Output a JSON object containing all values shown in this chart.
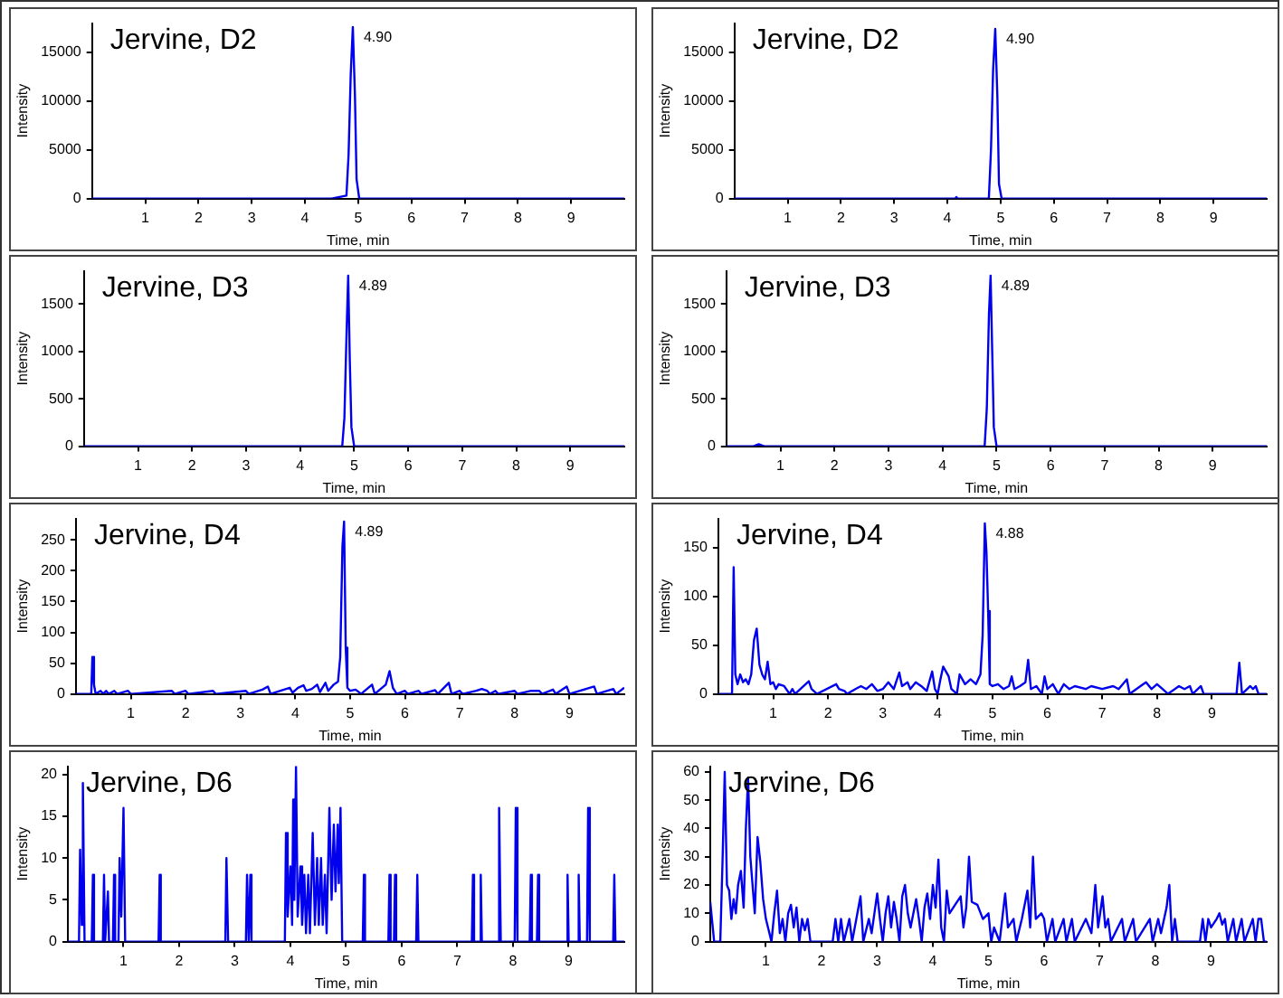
{
  "chart_data": [
    {
      "type": "line",
      "title": "Jervine, D2",
      "xlabel": "Time, min",
      "ylabel": "Intensity",
      "color": "#0000ee",
      "xlim": [
        0,
        10
      ],
      "xticks": [
        1,
        2,
        3,
        4,
        5,
        6,
        7,
        8,
        9
      ],
      "ylim": [
        0,
        18000
      ],
      "yticks": [
        0,
        5000,
        10000,
        15000
      ],
      "annotations": [
        {
          "text": "4.90",
          "x": 4.9,
          "y": 17600
        }
      ],
      "x": [
        0,
        4.5,
        4.78,
        4.82,
        4.86,
        4.9,
        4.94,
        4.97,
        5.02,
        10
      ],
      "values": [
        0,
        0,
        300,
        4500,
        12700,
        17600,
        10500,
        2000,
        0,
        0
      ]
    },
    {
      "type": "line",
      "title": "Jervine, D2",
      "xlabel": "Time, min",
      "ylabel": "Intensity",
      "color": "#0000ee",
      "xlim": [
        0,
        10
      ],
      "xticks": [
        1,
        2,
        3,
        4,
        5,
        6,
        7,
        8,
        9
      ],
      "ylim": [
        0,
        18000
      ],
      "yticks": [
        0,
        5000,
        10000,
        15000
      ],
      "annotations": [
        {
          "text": "4.90",
          "x": 4.9,
          "y": 17400
        }
      ],
      "x": [
        0,
        4.15,
        4.17,
        4.19,
        4.78,
        4.82,
        4.86,
        4.9,
        4.94,
        4.97,
        5.02,
        10
      ],
      "values": [
        0,
        0,
        150,
        0,
        0,
        5000,
        13200,
        17400,
        10500,
        1500,
        0,
        0
      ]
    },
    {
      "type": "line",
      "title": "Jervine, D3",
      "xlabel": "Time, min",
      "ylabel": "Intensity",
      "color": "#0000ee",
      "xlim": [
        0,
        10
      ],
      "xticks": [
        1,
        2,
        3,
        4,
        5,
        6,
        7,
        8,
        9
      ],
      "ylim": [
        0,
        1850
      ],
      "yticks": [
        0,
        500,
        1000,
        1500
      ],
      "annotations": [
        {
          "text": "4.89",
          "x": 4.89,
          "y": 1800
        }
      ],
      "x": [
        0,
        4.78,
        4.82,
        4.86,
        4.89,
        4.92,
        4.95,
        5.0,
        10
      ],
      "values": [
        0,
        0,
        300,
        1200,
        1800,
        900,
        200,
        0,
        0
      ]
    },
    {
      "type": "line",
      "title": "Jervine, D3",
      "xlabel": "Time, min",
      "ylabel": "Intensity",
      "color": "#0000ee",
      "xlim": [
        0,
        10
      ],
      "xticks": [
        1,
        2,
        3,
        4,
        5,
        6,
        7,
        8,
        9
      ],
      "ylim": [
        0,
        1850
      ],
      "yticks": [
        0,
        500,
        1000,
        1500
      ],
      "annotations": [
        {
          "text": "4.89",
          "x": 4.89,
          "y": 1800
        }
      ],
      "x": [
        0,
        0.5,
        0.6,
        0.7,
        4.78,
        4.82,
        4.86,
        4.89,
        4.92,
        4.95,
        5.0,
        10
      ],
      "values": [
        0,
        0,
        20,
        0,
        0,
        400,
        1400,
        1800,
        1000,
        200,
        0,
        0
      ]
    },
    {
      "type": "line",
      "title": "Jervine, D4",
      "xlabel": "Time, min",
      "ylabel": "Intensity",
      "color": "#0000ee",
      "xlim": [
        0,
        10
      ],
      "xticks": [
        1,
        2,
        3,
        4,
        5,
        6,
        7,
        8,
        9
      ],
      "ylim": [
        0,
        285
      ],
      "yticks": [
        0,
        50,
        100,
        150,
        200,
        250
      ],
      "annotations": [
        {
          "text": "4.89",
          "x": 4.89,
          "y": 280
        }
      ],
      "x": [
        0,
        0.28,
        0.3,
        0.33,
        0.36,
        0.45,
        0.5,
        0.55,
        0.6,
        0.7,
        0.75,
        0.95,
        1.0,
        1.75,
        1.8,
        2.0,
        2.05,
        2.5,
        2.55,
        3.1,
        3.15,
        3.4,
        3.5,
        3.55,
        3.9,
        3.95,
        4.05,
        4.15,
        4.2,
        4.3,
        4.4,
        4.45,
        4.55,
        4.6,
        4.7,
        4.78,
        4.82,
        4.86,
        4.89,
        4.92,
        4.95,
        5.0,
        5.1,
        5.2,
        5.4,
        5.45,
        5.65,
        5.72,
        5.78,
        5.85,
        6.0,
        6.05,
        6.25,
        6.3,
        6.55,
        6.6,
        6.8,
        6.85,
        7.0,
        7.05,
        7.3,
        7.4,
        7.5,
        7.55,
        7.65,
        7.7,
        8.0,
        8.05,
        8.3,
        8.45,
        8.5,
        8.7,
        8.75,
        8.95,
        9.0,
        9.45,
        9.5,
        9.8,
        9.85,
        10
      ],
      "values": [
        0,
        0,
        60,
        15,
        0,
        5,
        0,
        5,
        0,
        5,
        0,
        5,
        0,
        5,
        0,
        5,
        0,
        5,
        0,
        5,
        0,
        7,
        12,
        0,
        10,
        2,
        10,
        14,
        5,
        8,
        15,
        3,
        18,
        5,
        15,
        20,
        60,
        240,
        280,
        75,
        10,
        5,
        7,
        0,
        15,
        0,
        15,
        37,
        10,
        0,
        5,
        0,
        5,
        0,
        6,
        0,
        18,
        0,
        5,
        0,
        5,
        8,
        5,
        0,
        5,
        0,
        5,
        0,
        5,
        5,
        0,
        7,
        0,
        12,
        0,
        12,
        0,
        8,
        0,
        10
      ]
    },
    {
      "type": "line",
      "title": "Jervine, D4",
      "xlabel": "Time, min",
      "ylabel": "Intensity",
      "color": "#0000ee",
      "xlim": [
        0,
        10
      ],
      "xticks": [
        1,
        2,
        3,
        4,
        5,
        6,
        7,
        8,
        9
      ],
      "ylim": [
        0,
        180
      ],
      "yticks": [
        0,
        50,
        100,
        150
      ],
      "annotations": [
        {
          "text": "4.88",
          "x": 4.86,
          "y": 175
        }
      ],
      "x": [
        0,
        0.25,
        0.28,
        0.31,
        0.35,
        0.4,
        0.45,
        0.5,
        0.55,
        0.6,
        0.65,
        0.7,
        0.75,
        0.8,
        0.85,
        0.9,
        0.95,
        1.0,
        1.05,
        1.1,
        1.2,
        1.3,
        1.35,
        1.4,
        1.65,
        1.7,
        1.8,
        2.15,
        2.2,
        2.3,
        2.35,
        2.5,
        2.6,
        2.7,
        2.8,
        2.9,
        3.0,
        3.1,
        3.2,
        3.3,
        3.35,
        3.45,
        3.5,
        3.6,
        3.7,
        3.8,
        3.9,
        3.95,
        4.0,
        4.05,
        4.1,
        4.2,
        4.25,
        4.35,
        4.4,
        4.5,
        4.6,
        4.7,
        4.78,
        4.82,
        4.86,
        4.89,
        4.92,
        4.95,
        5.0,
        5.1,
        5.2,
        5.3,
        5.35,
        5.4,
        5.5,
        5.6,
        5.65,
        5.7,
        5.8,
        5.9,
        5.95,
        6.0,
        6.1,
        6.2,
        6.3,
        6.4,
        6.5,
        6.7,
        6.8,
        7.0,
        7.2,
        7.3,
        7.45,
        7.5,
        7.75,
        7.8,
        7.9,
        8.0,
        8.1,
        8.2,
        8.4,
        8.5,
        8.6,
        8.65,
        8.8,
        8.85,
        9.45,
        9.5,
        9.55,
        9.7,
        9.75,
        9.8,
        9.85,
        10
      ],
      "values": [
        0,
        0,
        130,
        20,
        10,
        20,
        12,
        15,
        10,
        20,
        55,
        67,
        30,
        20,
        15,
        33,
        10,
        12,
        5,
        10,
        8,
        0,
        5,
        0,
        13,
        5,
        0,
        10,
        5,
        3,
        0,
        5,
        8,
        5,
        10,
        3,
        5,
        12,
        5,
        22,
        8,
        12,
        5,
        12,
        8,
        3,
        23,
        5,
        0,
        15,
        28,
        18,
        5,
        0,
        20,
        10,
        15,
        10,
        20,
        60,
        175,
        145,
        85,
        10,
        8,
        10,
        5,
        8,
        18,
        5,
        8,
        12,
        35,
        5,
        8,
        0,
        18,
        5,
        10,
        0,
        10,
        5,
        8,
        5,
        8,
        5,
        8,
        5,
        15,
        0,
        10,
        12,
        5,
        10,
        5,
        0,
        8,
        5,
        8,
        0,
        8,
        0,
        0,
        32,
        0,
        8,
        5,
        8,
        0,
        0
      ]
    },
    {
      "type": "line",
      "title": "Jervine, D6",
      "xlabel": "Time, min",
      "ylabel": "Intensity",
      "color": "#0000ee",
      "xlim": [
        0,
        10
      ],
      "xticks": [
        1,
        2,
        3,
        4,
        5,
        6,
        7,
        8,
        9
      ],
      "ylim": [
        0,
        21
      ],
      "yticks": [
        0,
        5,
        10,
        15,
        20
      ],
      "x": [
        0,
        0.2,
        0.22,
        0.25,
        0.27,
        0.3,
        0.43,
        0.45,
        0.47,
        0.63,
        0.65,
        0.67,
        0.72,
        0.74,
        0.81,
        0.83,
        0.85,
        0.91,
        0.93,
        0.96,
        1.0,
        1.03,
        1.63,
        1.65,
        1.67,
        2.83,
        2.85,
        2.88,
        3.2,
        3.22,
        3.25,
        3.28,
        3.3,
        3.9,
        3.92,
        3.95,
        4.0,
        4.03,
        4.05,
        4.07,
        4.1,
        4.13,
        4.18,
        4.21,
        4.25,
        4.28,
        4.32,
        4.35,
        4.4,
        4.44,
        4.48,
        4.51,
        4.55,
        4.58,
        4.62,
        4.65,
        4.7,
        4.74,
        4.78,
        4.81,
        4.85,
        4.87,
        4.9,
        4.93,
        5.3,
        5.32,
        5.34,
        5.76,
        5.78,
        5.8,
        5.86,
        5.88,
        5.9,
        6.26,
        6.28,
        6.3,
        7.26,
        7.28,
        7.3,
        7.4,
        7.42,
        7.44,
        7.73,
        7.75,
        7.78,
        8.03,
        8.05,
        8.08,
        8.3,
        8.32,
        8.34,
        8.43,
        8.45,
        8.47,
        8.96,
        8.98,
        9.0,
        9.16,
        9.18,
        9.2,
        9.33,
        9.35,
        9.38,
        9.8,
        9.82,
        9.84,
        10
      ],
      "values": [
        0,
        0,
        11,
        2,
        19,
        0,
        0,
        8,
        0,
        0,
        8,
        0,
        6,
        0,
        0,
        8,
        0,
        0,
        10,
        3,
        16,
        0,
        0,
        8,
        0,
        0,
        10,
        0,
        0,
        8,
        0,
        8,
        0,
        0,
        13,
        3,
        9,
        2,
        17,
        5,
        21,
        3,
        9,
        2,
        8,
        1,
        8,
        1,
        13,
        2,
        10,
        2,
        10,
        2,
        8,
        1,
        16,
        5,
        14,
        6,
        14,
        7,
        16,
        0,
        0,
        8,
        0,
        0,
        8,
        0,
        0,
        8,
        0,
        0,
        8,
        0,
        0,
        8,
        0,
        0,
        8,
        0,
        0,
        16,
        0,
        0,
        16,
        0,
        0,
        8,
        0,
        0,
        8,
        0,
        0,
        8,
        0,
        0,
        8,
        0,
        0,
        16,
        0,
        0,
        8,
        0,
        0
      ]
    },
    {
      "type": "line",
      "title": "Jervine, D6",
      "xlabel": "Time, min",
      "ylabel": "Intensity",
      "color": "#0000ee",
      "xlim": [
        0,
        10
      ],
      "xticks": [
        1,
        2,
        3,
        4,
        5,
        6,
        7,
        8,
        9
      ],
      "ylim": [
        0,
        62
      ],
      "yticks": [
        0,
        10,
        20,
        30,
        40,
        50,
        60
      ],
      "x": [
        0,
        0.04,
        0.07,
        0.18,
        0.22,
        0.26,
        0.3,
        0.34,
        0.38,
        0.42,
        0.46,
        0.5,
        0.55,
        0.6,
        0.64,
        0.68,
        0.72,
        0.76,
        0.8,
        0.85,
        0.9,
        0.95,
        1.0,
        1.05,
        1.1,
        1.15,
        1.2,
        1.25,
        1.3,
        1.35,
        1.4,
        1.45,
        1.5,
        1.55,
        1.6,
        1.65,
        1.7,
        1.75,
        1.8,
        2.2,
        2.25,
        2.3,
        2.35,
        2.4,
        2.5,
        2.55,
        2.7,
        2.75,
        2.85,
        2.9,
        2.95,
        3.0,
        3.05,
        3.1,
        3.15,
        3.2,
        3.25,
        3.3,
        3.35,
        3.4,
        3.45,
        3.5,
        3.55,
        3.6,
        3.7,
        3.75,
        3.8,
        3.85,
        3.9,
        3.95,
        4.0,
        4.05,
        4.1,
        4.15,
        4.2,
        4.25,
        4.3,
        4.4,
        4.5,
        4.55,
        4.6,
        4.65,
        4.7,
        4.8,
        4.9,
        5.0,
        5.05,
        5.1,
        5.2,
        5.3,
        5.35,
        5.45,
        5.5,
        5.6,
        5.7,
        5.75,
        5.8,
        5.85,
        5.95,
        6.0,
        6.05,
        6.15,
        6.2,
        6.35,
        6.4,
        6.5,
        6.55,
        6.75,
        6.85,
        6.92,
        6.97,
        7.05,
        7.1,
        7.15,
        7.2,
        7.4,
        7.45,
        7.6,
        7.65,
        7.9,
        7.95,
        8.05,
        8.1,
        8.2,
        8.25,
        8.3,
        8.35,
        8.4,
        8.8,
        8.85,
        8.9,
        8.95,
        9.0,
        9.1,
        9.15,
        9.2,
        9.25,
        9.3,
        9.4,
        9.45,
        9.55,
        9.6,
        9.75,
        9.8,
        9.85,
        9.9,
        9.95,
        10
      ],
      "values": [
        14,
        6,
        0,
        0,
        28,
        60,
        20,
        18,
        8,
        15,
        10,
        20,
        25,
        12,
        40,
        58,
        30,
        20,
        10,
        37,
        28,
        15,
        8,
        4,
        0,
        10,
        18,
        3,
        8,
        0,
        10,
        13,
        5,
        12,
        0,
        8,
        4,
        8,
        0,
        0,
        8,
        0,
        8,
        0,
        8,
        0,
        16,
        0,
        8,
        3,
        10,
        17,
        8,
        0,
        10,
        16,
        5,
        14,
        8,
        0,
        16,
        20,
        10,
        5,
        15,
        8,
        0,
        12,
        17,
        8,
        20,
        12,
        29,
        5,
        0,
        18,
        10,
        13,
        16,
        5,
        12,
        30,
        14,
        13,
        8,
        10,
        0,
        5,
        0,
        17,
        5,
        8,
        0,
        8,
        18,
        5,
        30,
        8,
        10,
        8,
        0,
        8,
        0,
        8,
        0,
        8,
        0,
        8,
        3,
        20,
        5,
        16,
        5,
        8,
        0,
        8,
        0,
        8,
        0,
        8,
        0,
        8,
        3,
        12,
        20,
        0,
        8,
        0,
        0,
        8,
        0,
        8,
        5,
        8,
        10,
        6,
        8,
        0,
        8,
        0,
        8,
        0,
        8,
        0,
        8,
        8,
        0,
        0
      ]
    }
  ]
}
